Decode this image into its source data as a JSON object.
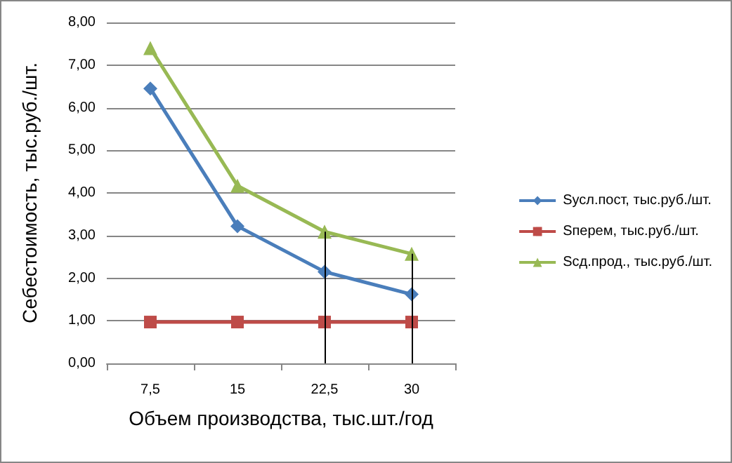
{
  "chart_data": {
    "type": "line",
    "xlabel": "Объем производства, тыс.шт./год",
    "ylabel": "Себестоимость, тыс.руб./шт.",
    "categories": [
      "7,5",
      "15",
      "22,5",
      "30"
    ],
    "series": [
      {
        "name": "Sусл.пост, тыс.руб./шт.",
        "color": "#4a7ebb",
        "marker": "diamond",
        "values": [
          6.45,
          3.22,
          2.15,
          1.62
        ]
      },
      {
        "name": "Sперем, тыс.руб./шт.",
        "color": "#be4b48",
        "marker": "square",
        "values": [
          0.97,
          0.97,
          0.97,
          0.97
        ]
      },
      {
        "name": "Sсд.прод., тыс.руб./шт.",
        "color": "#98b954",
        "marker": "triangle",
        "values": [
          7.4,
          4.17,
          3.09,
          2.57
        ]
      }
    ],
    "ylim": [
      0,
      8
    ],
    "yticks": [
      {
        "value": 0,
        "label": "0,00"
      },
      {
        "value": 1,
        "label": "1,00"
      },
      {
        "value": 2,
        "label": "2,00"
      },
      {
        "value": 3,
        "label": "3,00"
      },
      {
        "value": 4,
        "label": "4,00"
      },
      {
        "value": 5,
        "label": "5,00"
      },
      {
        "value": 6,
        "label": "6,00"
      },
      {
        "value": 7,
        "label": "7,00"
      },
      {
        "value": 8,
        "label": "8,00"
      }
    ],
    "grid": "y",
    "legend": "right",
    "ref_lines": [
      {
        "axis": "x",
        "value": "22,5",
        "color": "#000000"
      },
      {
        "axis": "x",
        "value": "30",
        "color": "#000000"
      }
    ]
  }
}
